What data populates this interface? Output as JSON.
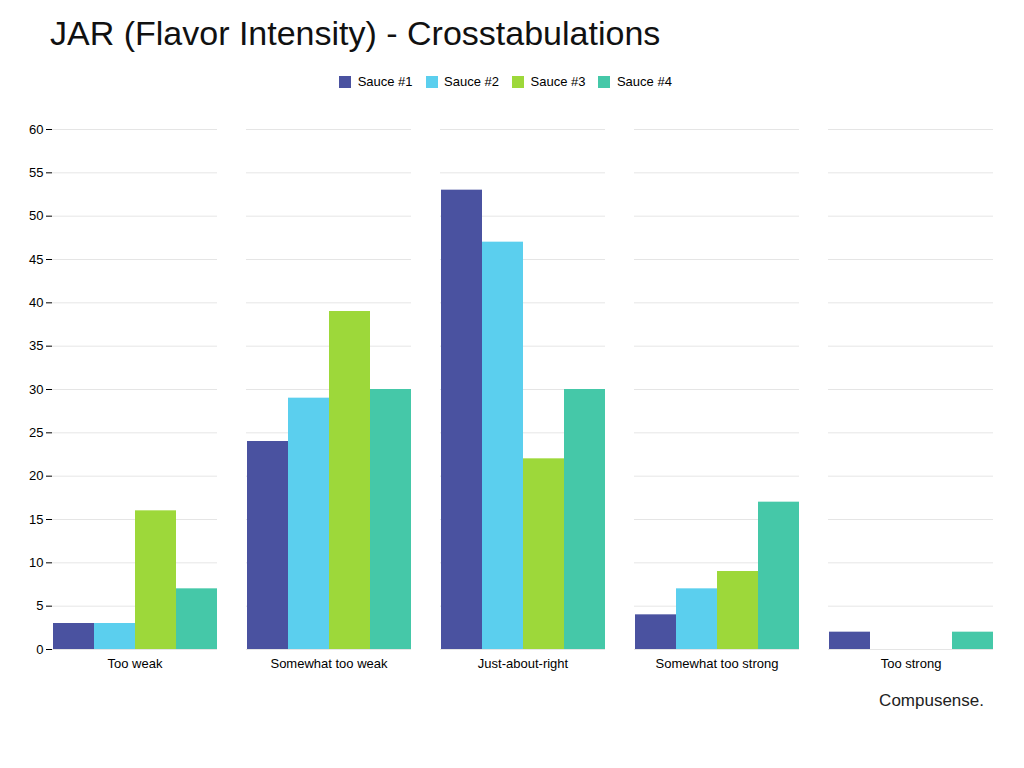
{
  "chart_data": {
    "type": "bar",
    "title": "JAR (Flavor Intensity) - Crosstabulations",
    "categories": [
      "Too weak",
      "Somewhat too weak",
      "Just-about-right",
      "Somewhat too strong",
      "Too strong"
    ],
    "series": [
      {
        "name": "Sauce #1",
        "color": "#4A52A0",
        "values": [
          3,
          24,
          53,
          4,
          2
        ]
      },
      {
        "name": "Sauce #2",
        "color": "#5BCFEE",
        "values": [
          3,
          29,
          47,
          7,
          0
        ]
      },
      {
        "name": "Sauce #3",
        "color": "#9DD83A",
        "values": [
          16,
          39,
          22,
          9,
          0
        ]
      },
      {
        "name": "Sauce #4",
        "color": "#45C8A8",
        "values": [
          7,
          30,
          30,
          17,
          2
        ]
      }
    ],
    "ylim": [
      0,
      60
    ],
    "yticks": [
      0,
      5,
      10,
      15,
      20,
      25,
      30,
      35,
      40,
      45,
      50,
      55,
      60
    ],
    "grid": true,
    "legend": "top",
    "annotations": [
      "Compusense."
    ]
  }
}
